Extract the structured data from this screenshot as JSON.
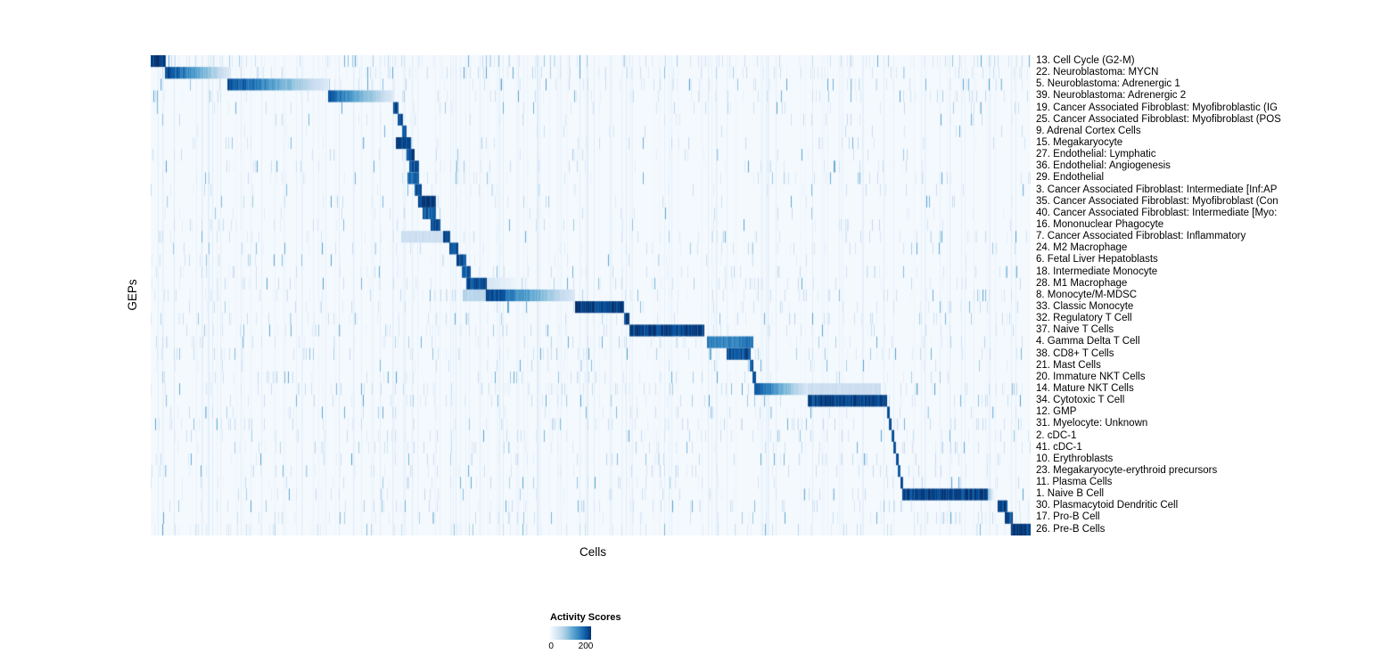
{
  "chart_data": {
    "type": "heatmap",
    "title": "",
    "xlabel": "Cells",
    "ylabel": "GEPs",
    "colormap": "Blues",
    "colormap_stops": [
      [
        0,
        "#f7fbff"
      ],
      [
        0.13,
        "#deebf7"
      ],
      [
        0.26,
        "#c6dbef"
      ],
      [
        0.39,
        "#9ecae1"
      ],
      [
        0.52,
        "#6baed6"
      ],
      [
        0.65,
        "#4292c6"
      ],
      [
        0.78,
        "#2171b5"
      ],
      [
        0.9,
        "#08519c"
      ],
      [
        1,
        "#08306b"
      ]
    ],
    "colorbar": {
      "title": "Activity Scores",
      "min": 0,
      "max": 200,
      "tick_labels": [
        "0",
        "200"
      ],
      "max_tick_position": 0.87
    },
    "n_rows": 41,
    "rows": [
      {
        "label": "13. Cell Cycle (G2-M)",
        "noise": 0.55,
        "segments": [
          [
            0.0,
            0.017,
            0.95,
            "flat"
          ]
        ]
      },
      {
        "label": "22. Neuroblastoma: MYCN",
        "noise": 0.5,
        "segments": [
          [
            0.016,
            0.09,
            0.97,
            "fadeR"
          ]
        ]
      },
      {
        "label": "5. Neuroblastoma: Adrenergic 1",
        "noise": 0.4,
        "segments": [
          [
            0.087,
            0.202,
            0.95,
            "fadeR"
          ]
        ]
      },
      {
        "label": "39. Neuroblastoma: Adrenergic 2",
        "noise": 0.35,
        "segments": [
          [
            0.202,
            0.277,
            0.88,
            "fadeR"
          ]
        ]
      },
      {
        "label": "19. Cancer Associated Fibroblast: Myofibroblastic (IG",
        "noise": 0.15,
        "segments": [
          [
            0.2756,
            0.2817,
            0.92,
            "flat"
          ]
        ]
      },
      {
        "label": "25. Cancer Associated Fibroblast: Myofibroblast (POS",
        "noise": 0.15,
        "segments": [
          [
            0.2806,
            0.2867,
            0.9,
            "flat"
          ]
        ]
      },
      {
        "label": "9. Adrenal Cortex Cells",
        "noise": 0.12,
        "segments": [
          [
            0.2857,
            0.2908,
            0.88,
            "flat"
          ]
        ]
      },
      {
        "label": "15. Megakaryocyte",
        "noise": 0.15,
        "segments": [
          [
            0.2786,
            0.2959,
            0.96,
            "flat"
          ]
        ]
      },
      {
        "label": "27. Endothelial: Lymphatic",
        "noise": 0.12,
        "segments": [
          [
            0.2908,
            0.2999,
            0.9,
            "flat"
          ]
        ]
      },
      {
        "label": "36. Endothelial: Angiogenesis",
        "noise": 0.18,
        "segments": [
          [
            0.2938,
            0.3049,
            0.86,
            "flat"
          ]
        ]
      },
      {
        "label": "29. Endothelial",
        "noise": 0.2,
        "segments": [
          [
            0.2918,
            0.3049,
            0.82,
            "flat"
          ]
        ]
      },
      {
        "label": "3. Cancer Associated Fibroblast: Intermediate [Inf:AP",
        "noise": 0.15,
        "segments": [
          [
            0.2999,
            0.308,
            0.9,
            "flat"
          ]
        ]
      },
      {
        "label": "35. Cancer Associated Fibroblast: Myofibroblast (Con",
        "noise": 0.15,
        "segments": [
          [
            0.3039,
            0.3242,
            0.93,
            "flat"
          ]
        ]
      },
      {
        "label": "40. Cancer Associated Fibroblast: Intermediate [Myo:",
        "noise": 0.15,
        "segments": [
          [
            0.309,
            0.3242,
            0.85,
            "flat"
          ]
        ]
      },
      {
        "label": "16. Mononuclear Phagocyte",
        "noise": 0.2,
        "segments": [
          [
            0.3181,
            0.3293,
            0.9,
            "flat"
          ]
        ]
      },
      {
        "label": "7. Cancer Associated Fibroblast: Inflammatory",
        "noise": 0.25,
        "segments": [
          [
            0.2847,
            0.3323,
            0.22,
            "flat"
          ],
          [
            0.3323,
            0.3404,
            0.9,
            "flat"
          ]
        ]
      },
      {
        "label": "24. M2 Macrophage",
        "noise": 0.2,
        "segments": [
          [
            0.3394,
            0.3495,
            0.9,
            "flat"
          ]
        ]
      },
      {
        "label": "6. Fetal Liver Hepatoblasts",
        "noise": 0.25,
        "segments": [
          [
            0.3475,
            0.3587,
            0.88,
            "flat"
          ]
        ]
      },
      {
        "label": "18. Intermediate Monocyte",
        "noise": 0.3,
        "segments": [
          [
            0.3536,
            0.3637,
            0.85,
            "flat"
          ]
        ]
      },
      {
        "label": "28. M1 Macrophage",
        "noise": 0.3,
        "segments": [
          [
            0.3587,
            0.3819,
            0.9,
            "flat"
          ],
          [
            0.3819,
            0.42,
            0.18,
            "fadeR"
          ]
        ]
      },
      {
        "label": "8. Monocyte/M-MDSC",
        "noise": 0.35,
        "segments": [
          [
            0.355,
            0.381,
            0.3,
            "flat"
          ],
          [
            0.381,
            0.482,
            0.97,
            "fadeR"
          ]
        ]
      },
      {
        "label": "33. Classic Monocyte",
        "noise": 0.25,
        "segments": [
          [
            0.4823,
            0.538,
            0.95,
            "flat"
          ]
        ]
      },
      {
        "label": "32. Regulatory T Cell",
        "noise": 0.35,
        "segments": [
          [
            0.538,
            0.544,
            0.92,
            "flat"
          ]
        ]
      },
      {
        "label": "37. Naive T Cells",
        "noise": 0.3,
        "segments": [
          [
            0.544,
            0.629,
            0.93,
            "flat"
          ]
        ]
      },
      {
        "label": "4. Gamma Delta T Cell",
        "noise": 0.4,
        "segments": [
          [
            0.632,
            0.685,
            0.72,
            "flat"
          ]
        ]
      },
      {
        "label": "38. CD8+ T Cells",
        "noise": 0.3,
        "segments": [
          [
            0.6545,
            0.6818,
            0.9,
            "flat"
          ]
        ]
      },
      {
        "label": "21. Mast Cells",
        "noise": 0.15,
        "segments": [
          [
            0.6808,
            0.6849,
            0.92,
            "flat"
          ]
        ]
      },
      {
        "label": "20. Immature NKT Cells",
        "noise": 0.3,
        "segments": [
          [
            0.6839,
            0.6879,
            0.88,
            "flat"
          ]
        ]
      },
      {
        "label": "14. Mature NKT Cells",
        "noise": 0.35,
        "segments": [
          [
            0.686,
            0.747,
            0.93,
            "fadeR"
          ],
          [
            0.747,
            0.83,
            0.22,
            "flat"
          ]
        ]
      },
      {
        "label": "34. Cytotoxic T Cell",
        "noise": 0.3,
        "segments": [
          [
            0.7467,
            0.8369,
            0.93,
            "flat"
          ]
        ]
      },
      {
        "label": "12. GMP",
        "noise": 0.2,
        "segments": [
          [
            0.8369,
            0.84,
            0.9,
            "flat"
          ]
        ]
      },
      {
        "label": "31. Myelocyte: Unknown",
        "noise": 0.35,
        "segments": [
          [
            0.839,
            0.842,
            0.88,
            "flat"
          ]
        ]
      },
      {
        "label": "2. cDC-1",
        "noise": 0.3,
        "segments": [
          [
            0.842,
            0.845,
            0.9,
            "flat"
          ]
        ]
      },
      {
        "label": "41. cDC-1",
        "noise": 0.25,
        "segments": [
          [
            0.844,
            0.847,
            0.86,
            "flat"
          ]
        ]
      },
      {
        "label": "10. Erythroblasts",
        "noise": 0.3,
        "segments": [
          [
            0.847,
            0.85,
            0.9,
            "flat"
          ]
        ]
      },
      {
        "label": "23. Megakaryocyte-erythroid precursors",
        "noise": 0.3,
        "segments": [
          [
            0.849,
            0.852,
            0.86,
            "flat"
          ]
        ]
      },
      {
        "label": "11. Plasma Cells",
        "noise": 0.25,
        "segments": [
          [
            0.852,
            0.855,
            0.9,
            "flat"
          ]
        ]
      },
      {
        "label": "1. Naive B Cell",
        "noise": 0.3,
        "segments": [
          [
            0.854,
            0.951,
            0.93,
            "flat"
          ],
          [
            0.951,
            0.958,
            0.4,
            "fadeR"
          ]
        ]
      },
      {
        "label": "30. Plasmacytoid Dendritic Cell",
        "noise": 0.25,
        "segments": [
          [
            0.9625,
            0.9737,
            0.92,
            "flat"
          ]
        ]
      },
      {
        "label": "17. Pro-B Cell",
        "noise": 0.3,
        "segments": [
          [
            0.9706,
            0.9797,
            0.92,
            "flat"
          ]
        ]
      },
      {
        "label": "26. Pre-B Cells",
        "noise": 0.35,
        "segments": [
          [
            0.9777,
            1.0,
            0.95,
            "flat"
          ]
        ]
      }
    ]
  }
}
